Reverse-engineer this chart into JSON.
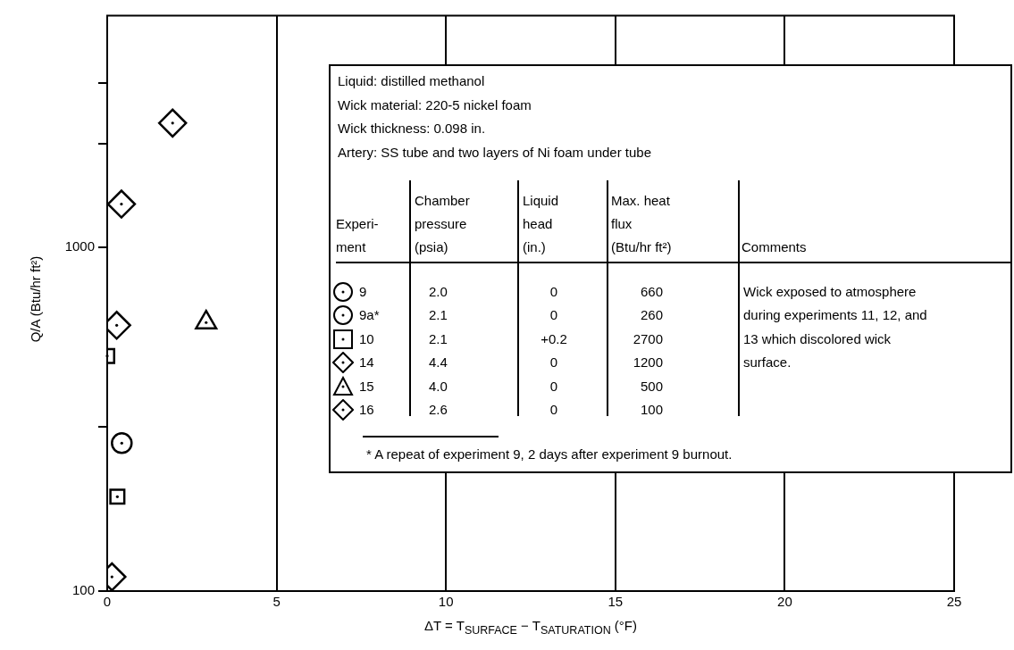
{
  "chart_data": {
    "type": "scatter",
    "xlabel": "ΔT = T$_{SURFACE}$ − T$_{SATURATION}$ (°F)",
    "ylabel": "Q/A (Btu/hr ft²)",
    "xlim": [
      0,
      25
    ],
    "xticks": [
      0,
      5,
      10,
      15,
      20,
      25
    ],
    "ylim": [
      100,
      4700
    ],
    "yticks": [
      100,
      {
        "value": 300,
        "label": null
      },
      1000,
      {
        "value": 2000,
        "label": null
      },
      {
        "value": 3000,
        "label": null
      }
    ],
    "log": "y",
    "grid": "x",
    "legend": "left",
    "series": [
      {
        "name": "9",
        "color": "#000000",
        "marker": "circle",
        "x": [
          0.43
        ],
        "values": [
          269
        ]
      },
      {
        "name": "9a*",
        "color": "#000000",
        "marker": "circle"
      },
      {
        "name": "10",
        "color": "#000000",
        "marker": "square",
        "x": [
          0,
          0.3
        ],
        "values": [
          482,
          188
        ]
      },
      {
        "name": "14",
        "color": "#000000",
        "marker": "diamond",
        "x": [
          1.93,
          0.42,
          0.28
        ],
        "values": [
          2290,
          1332,
          592
        ]
      },
      {
        "name": "15",
        "color": "#000000",
        "marker": "triangle",
        "x": [
          2.92
        ],
        "values": [
          603
        ]
      },
      {
        "name": "16",
        "color": "#000000",
        "marker": "diamond",
        "x": [
          0.14
        ],
        "values": [
          110
        ]
      }
    ],
    "annotations": [
      "Liquid:  distilled methanol",
      "Wick material:  220-5 nickel foam",
      "Wick thickness:  0.098 in.",
      "Artery:  SS tube and two layers of Ni foam under tube",
      "Experi-\nment",
      "Chamber\npressure\n(psia)",
      "Liquid\nhead\n(in.)",
      "Max. heat\nflux\n(Btu/hr ft²)",
      "Comments",
      "2.0",
      "0",
      "660",
      "2.1",
      "0",
      "260",
      "2.1",
      "+0.2",
      "2700",
      "4.4",
      "0",
      "1200",
      "4.0",
      "0",
      "500",
      "2.6",
      "0",
      "100",
      "Wick exposed to atmosphere\nduring experiments 11, 12, and\n13 which discolored wick\nsurface.",
      "*  A repeat of experiment 9, 2 days after experiment 9 burnout."
    ]
  }
}
